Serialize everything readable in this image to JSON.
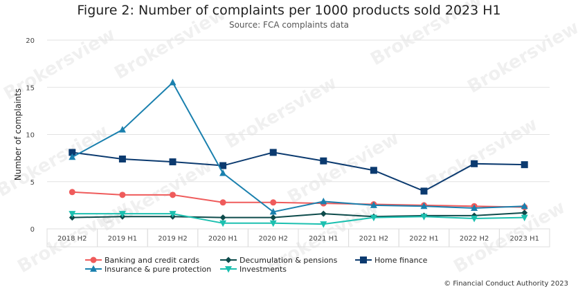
{
  "chart_data": {
    "type": "line",
    "title": "Figure 2: Number of complaints per 1000 products sold 2023 H1",
    "subtitle": "Source: FCA complaints data",
    "xlabel": "",
    "ylabel": "Number of complaints",
    "ylim": [
      0,
      20
    ],
    "yticks": [
      0,
      5,
      10,
      15,
      20
    ],
    "grid": true,
    "legend": "bottom",
    "categories": [
      "2018 H2",
      "2019 H1",
      "2019 H2",
      "2020 H1",
      "2020 H2",
      "2021 H1",
      "2021 H2",
      "2022 H1",
      "2022 H2",
      "2023 H1"
    ],
    "series": [
      {
        "name": "Banking and credit cards",
        "color": "#ef5b5b",
        "marker": "circle",
        "values": [
          3.9,
          3.6,
          3.6,
          2.8,
          2.8,
          2.7,
          2.6,
          2.5,
          2.4,
          2.3
        ]
      },
      {
        "name": "Decumulation & pensions",
        "color": "#0d4b4b",
        "marker": "diamond",
        "values": [
          1.2,
          1.3,
          1.3,
          1.2,
          1.2,
          1.6,
          1.3,
          1.4,
          1.4,
          1.7
        ]
      },
      {
        "name": "Home finance",
        "color": "#0b3a6f",
        "marker": "square",
        "values": [
          8.1,
          7.4,
          7.1,
          6.7,
          8.1,
          7.2,
          6.2,
          4.0,
          6.9,
          6.8
        ]
      },
      {
        "name": "Insurance & pure protection",
        "color": "#1a80ae",
        "marker": "triangle-up",
        "values": [
          7.6,
          10.5,
          15.5,
          5.9,
          1.8,
          2.9,
          2.5,
          2.4,
          2.2,
          2.4
        ]
      },
      {
        "name": "Investments",
        "color": "#1cc0b0",
        "marker": "triangle-down",
        "values": [
          1.6,
          1.6,
          1.6,
          0.6,
          0.6,
          0.5,
          1.2,
          1.3,
          1.1,
          1.2
        ]
      }
    ]
  },
  "footer": {
    "credit": "© Financial Conduct Authority 2023"
  },
  "watermark": "Brokersview"
}
